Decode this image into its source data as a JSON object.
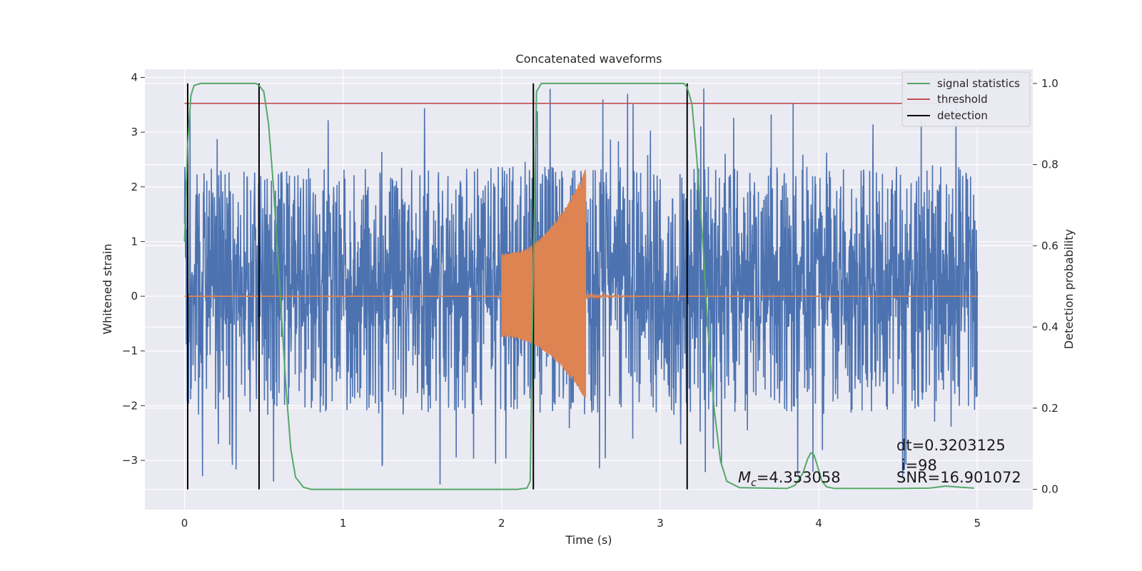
{
  "chart_data": {
    "type": "line",
    "title": "Concatenated waveforms",
    "xlabel": "Time (s)",
    "ylabel_left": "Whitened strain",
    "ylabel_right": "Detection probability",
    "xlim": [
      -0.25,
      5.35
    ],
    "ylim_left": [
      -3.9,
      4.15
    ],
    "ylim_right": [
      -0.05,
      1.035
    ],
    "x_ticks": [
      0,
      1,
      2,
      3,
      4,
      5
    ],
    "y_left_ticks": [
      -3,
      -2,
      -1,
      0,
      1,
      2,
      3,
      4
    ],
    "y_right_ticks": [
      0.0,
      0.2,
      0.4,
      0.6,
      0.8,
      1.0
    ],
    "grid": true,
    "legend_position": "top-right",
    "legend": [
      {
        "label": "signal statistics",
        "color": "#55a868"
      },
      {
        "label": "threshold",
        "color": "#c44e52"
      },
      {
        "label": "detection",
        "color": "#000000"
      }
    ],
    "series": [
      {
        "name": "signal statistics",
        "axis": "right",
        "color": "#55a868",
        "x": [
          0.0,
          0.02,
          0.04,
          0.06,
          0.1,
          0.45,
          0.47,
          0.5,
          0.53,
          0.56,
          0.6,
          0.64,
          0.67,
          0.7,
          0.75,
          0.8,
          1.5,
          2.1,
          2.16,
          2.18,
          2.2,
          2.22,
          2.25,
          3.15,
          3.17,
          3.2,
          3.23,
          3.27,
          3.3,
          3.34,
          3.38,
          3.42,
          3.5,
          3.8,
          3.85,
          3.9,
          3.93,
          3.95,
          3.97,
          3.99,
          4.02,
          4.05,
          4.1,
          4.5,
          4.7,
          4.8,
          4.9,
          4.98
        ],
        "y": [
          0.61,
          0.85,
          0.97,
          0.995,
          1.0,
          1.0,
          0.995,
          0.98,
          0.9,
          0.75,
          0.5,
          0.25,
          0.1,
          0.03,
          0.005,
          0.0,
          0.0,
          0.0,
          0.003,
          0.02,
          0.55,
          0.98,
          1.0,
          1.0,
          0.99,
          0.95,
          0.82,
          0.6,
          0.4,
          0.2,
          0.07,
          0.02,
          0.004,
          0.002,
          0.01,
          0.04,
          0.075,
          0.09,
          0.085,
          0.06,
          0.02,
          0.006,
          0.002,
          0.002,
          0.003,
          0.008,
          0.005,
          0.003
        ]
      },
      {
        "name": "threshold",
        "axis": "right",
        "color": "#c44e52",
        "x": [
          0.0,
          5.05
        ],
        "y": [
          0.951,
          0.951
        ]
      },
      {
        "name": "detection",
        "axis": "right",
        "color": "#000000",
        "x": [
          0.02,
          0.47,
          2.2,
          3.17
        ],
        "y_range": [
          0.0,
          1.0
        ]
      },
      {
        "name": "",
        "axis": "left",
        "color": "#4c72b0",
        "x_range": [
          0.0,
          5.0
        ],
        "y_band": [
          -0.57,
          0.87
        ],
        "y_peaks_max": 3.82,
        "y_peaks_min": -3.5
      },
      {
        "name": "",
        "axis": "left",
        "color": "#dd8452",
        "x_range": [
          2.0,
          2.53
        ],
        "y_envelope_start": [
          -0.75,
          0.78
        ],
        "y_envelope_end": [
          -1.9,
          2.35
        ]
      }
    ],
    "annotations": [
      {
        "text": "dt=0.3203125"
      },
      {
        "text": " i=98"
      },
      {
        "text": "SNR=16.901072"
      },
      {
        "text": "=4.353058",
        "symbol_main": "M",
        "symbol_sub": "c"
      }
    ]
  }
}
